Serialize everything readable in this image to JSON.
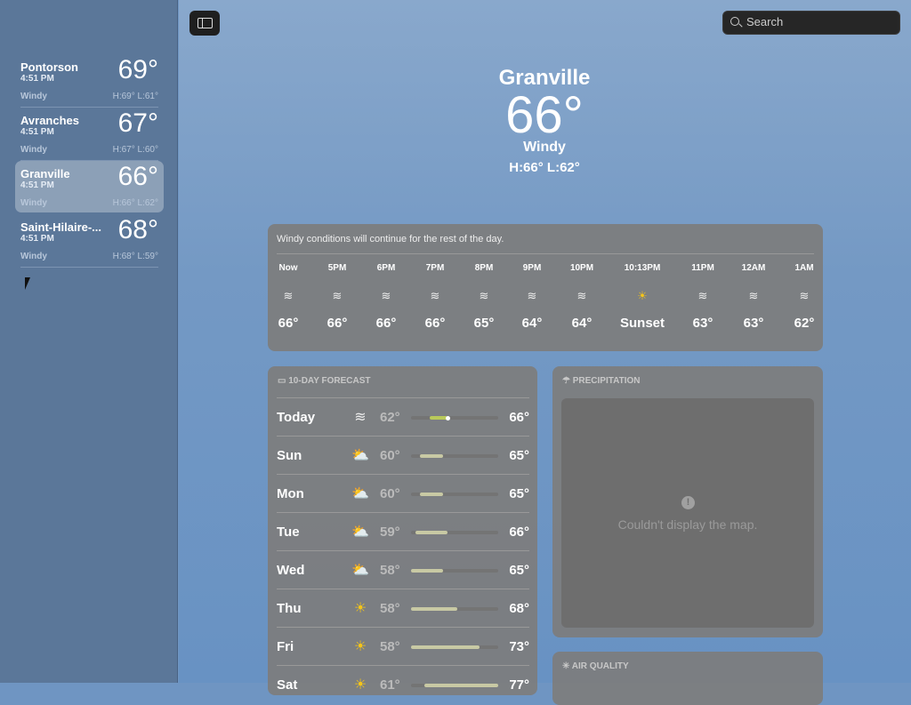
{
  "sidebar": {
    "locations": [
      {
        "name": "Pontorson",
        "time": "4:51 PM",
        "temp": "69°",
        "condition": "Windy",
        "hl": "H:69°  L:61°",
        "selected": false
      },
      {
        "name": "Avranches",
        "time": "4:51 PM",
        "temp": "67°",
        "condition": "Windy",
        "hl": "H:67°  L:60°",
        "selected": false
      },
      {
        "name": "Granville",
        "time": "4:51 PM",
        "temp": "66°",
        "condition": "Windy",
        "hl": "H:66°  L:62°",
        "selected": true
      },
      {
        "name": "Saint-Hilaire-...",
        "time": "4:51 PM",
        "temp": "68°",
        "condition": "Windy",
        "hl": "H:68°  L:59°",
        "selected": false
      }
    ]
  },
  "toolbar": {
    "search_placeholder": "Search"
  },
  "current": {
    "city": "Granville",
    "temp": "66°",
    "condition": "Windy",
    "hl": "H:66°  L:62°"
  },
  "hourly": {
    "summary": "Windy conditions will continue for the rest of the day.",
    "items": [
      {
        "time": "Now",
        "icon": "wind",
        "value": "66°"
      },
      {
        "time": "5PM",
        "icon": "wind",
        "value": "66°"
      },
      {
        "time": "6PM",
        "icon": "wind",
        "value": "66°"
      },
      {
        "time": "7PM",
        "icon": "wind",
        "value": "66°"
      },
      {
        "time": "8PM",
        "icon": "wind",
        "value": "65°"
      },
      {
        "time": "9PM",
        "icon": "wind",
        "value": "64°"
      },
      {
        "time": "10PM",
        "icon": "wind",
        "value": "64°"
      },
      {
        "time": "10:13PM",
        "icon": "sunset",
        "value": "Sunset"
      },
      {
        "time": "11PM",
        "icon": "wind",
        "value": "63°"
      },
      {
        "time": "12AM",
        "icon": "wind",
        "value": "63°"
      },
      {
        "time": "1AM",
        "icon": "wind",
        "value": "62°"
      }
    ]
  },
  "forecast": {
    "title": "10-DAY FORECAST",
    "range": [
      58,
      77
    ],
    "days": [
      {
        "day": "Today",
        "icon": "wind",
        "low": 62,
        "high": 66,
        "lo_label": "62°",
        "hi_label": "66°",
        "current": 66
      },
      {
        "day": "Sun",
        "icon": "partly-sunny",
        "low": 60,
        "high": 65,
        "lo_label": "60°",
        "hi_label": "65°"
      },
      {
        "day": "Mon",
        "icon": "partly-sunny",
        "low": 60,
        "high": 65,
        "lo_label": "60°",
        "hi_label": "65°"
      },
      {
        "day": "Tue",
        "icon": "partly-sunny",
        "low": 59,
        "high": 66,
        "lo_label": "59°",
        "hi_label": "66°"
      },
      {
        "day": "Wed",
        "icon": "partly-sunny",
        "low": 58,
        "high": 65,
        "lo_label": "58°",
        "hi_label": "65°"
      },
      {
        "day": "Thu",
        "icon": "sun",
        "low": 58,
        "high": 68,
        "lo_label": "58°",
        "hi_label": "68°"
      },
      {
        "day": "Fri",
        "icon": "sun",
        "low": 58,
        "high": 73,
        "lo_label": "58°",
        "hi_label": "73°"
      },
      {
        "day": "Sat",
        "icon": "sun",
        "low": 61,
        "high": 77,
        "lo_label": "61°",
        "hi_label": "77°"
      }
    ]
  },
  "precipitation": {
    "title": "PRECIPITATION",
    "message": "Couldn't display the map."
  },
  "air_quality": {
    "title": "AIR QUALITY"
  },
  "colors": {
    "sun": "#f5c518",
    "bar": "#c8c9a4",
    "today_bar": "#b9c95a"
  }
}
